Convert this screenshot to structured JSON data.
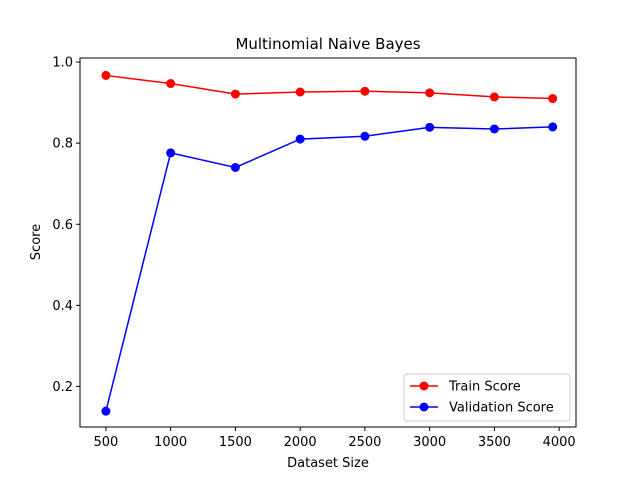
{
  "chart_data": {
    "type": "line",
    "title": "Multinomial Naive Bayes",
    "xlabel": "Dataset Size",
    "ylabel": "Score",
    "xlim": [
      300,
      4130
    ],
    "ylim": [
      0.1,
      1.01
    ],
    "xticks": [
      500,
      1000,
      1500,
      2000,
      2500,
      3000,
      3500,
      4000
    ],
    "yticks": [
      0.2,
      0.4,
      0.6,
      0.8,
      1.0
    ],
    "xtick_labels": [
      "500",
      "1000",
      "1500",
      "2000",
      "2500",
      "3000",
      "3500",
      "4000"
    ],
    "ytick_labels": [
      "0.2",
      "0.4",
      "0.6",
      "0.8",
      "1.0"
    ],
    "grid": false,
    "legend_position": "lower-right",
    "x": [
      500,
      1000,
      1500,
      2000,
      2500,
      3000,
      3500,
      3950
    ],
    "series": [
      {
        "name": "Train Score",
        "color": "#ff0000",
        "values": [
          0.967,
          0.947,
          0.921,
          0.926,
          0.928,
          0.924,
          0.914,
          0.91
        ]
      },
      {
        "name": "Validation Score",
        "color": "#0000ff",
        "values": [
          0.139,
          0.776,
          0.74,
          0.81,
          0.817,
          0.839,
          0.835,
          0.84
        ]
      }
    ]
  }
}
